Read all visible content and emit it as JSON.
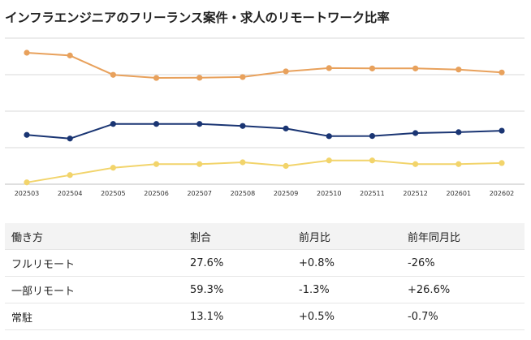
{
  "title": "インフラエンジニアのフリーランス案件・求人のリモートワーク比率",
  "chart_data": {
    "type": "line",
    "title": "インフラエンジニアのフリーランス案件・求人のリモートワーク比率",
    "categories": [
      "202503",
      "202504",
      "202505",
      "202506",
      "202507",
      "202508",
      "202509",
      "202510",
      "202511",
      "202512",
      "202601",
      "202602"
    ],
    "ylim": [
      0,
      80
    ],
    "gridlines": [
      20,
      40,
      60,
      80
    ],
    "series": [
      {
        "name": "一部リモート",
        "color": "#e8a15c",
        "values": [
          72.0,
          70.5,
          59.9,
          58.2,
          58.3,
          58.7,
          61.8,
          63.6,
          63.4,
          63.4,
          62.8,
          61.2
        ]
      },
      {
        "name": "フルリモート",
        "color": "#1a3573",
        "values": [
          27.0,
          25.0,
          33.0,
          33.0,
          33.0,
          31.9,
          30.5,
          26.3,
          26.4,
          28.0,
          28.5,
          29.3
        ]
      },
      {
        "name": "常駐",
        "color": "#f2d46b",
        "values": [
          1.0,
          5.0,
          9.0,
          11.0,
          11.0,
          12.0,
          10.0,
          13.0,
          13.0,
          11.0,
          11.0,
          11.6
        ]
      }
    ]
  },
  "table": {
    "headers": [
      "働き方",
      "割合",
      "前月比",
      "前年同月比"
    ],
    "rows": [
      [
        "フルリモート",
        "27.6%",
        "+0.8%",
        "-26%"
      ],
      [
        "一部リモート",
        "59.3%",
        "-1.3%",
        "+26.6%"
      ],
      [
        "常駐",
        "13.1%",
        "+0.5%",
        "-0.7%"
      ]
    ]
  }
}
